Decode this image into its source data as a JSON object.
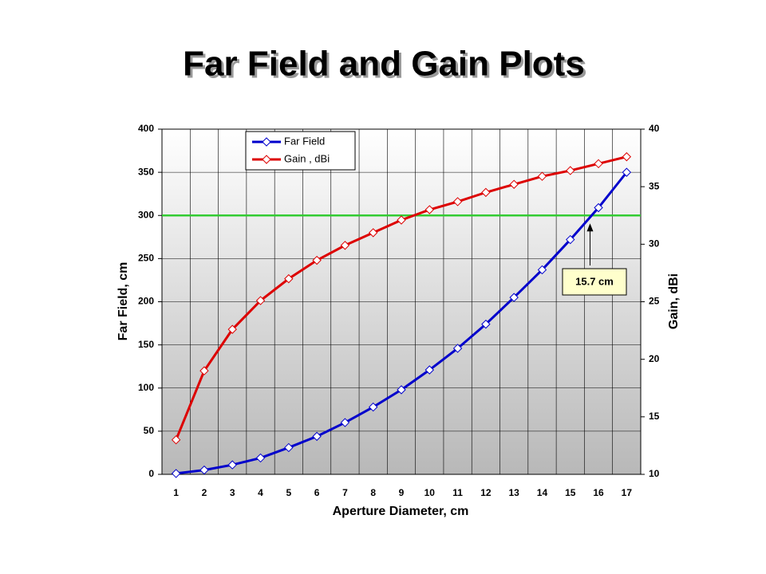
{
  "chart_data": {
    "type": "line",
    "title": "Far Field and Gain Plots",
    "x_label": "Aperture Diameter, cm",
    "y_label": "Far Field, cm",
    "y2_label": "Gain, dBi",
    "x": [
      1,
      2,
      3,
      4,
      5,
      6,
      7,
      8,
      9,
      10,
      11,
      12,
      13,
      14,
      15,
      16,
      17
    ],
    "xlim": [
      0.5,
      17.5
    ],
    "xticks": [
      1,
      2,
      3,
      4,
      5,
      6,
      7,
      8,
      9,
      10,
      11,
      12,
      13,
      14,
      15,
      16,
      17
    ],
    "ylim": [
      0,
      400
    ],
    "yticks": [
      0,
      50,
      100,
      150,
      200,
      250,
      300,
      350,
      400
    ],
    "y2lim": [
      10,
      40
    ],
    "y2ticks": [
      10,
      15,
      20,
      25,
      30,
      35,
      40
    ],
    "grid": true,
    "legend": "top-left",
    "series": [
      {
        "name": "Far Field",
        "color": "#0000cc",
        "values": [
          1,
          5,
          11,
          19,
          31,
          44,
          60,
          78,
          98,
          121,
          146,
          174,
          205,
          237,
          272,
          309,
          350
        ]
      },
      {
        "name": "Gain , dBi",
        "color": "#dd0000",
        "axis": "y2",
        "values": [
          13.0,
          19.0,
          22.6,
          25.1,
          27.0,
          28.6,
          29.9,
          31.0,
          32.1,
          33.0,
          33.7,
          34.5,
          35.2,
          35.9,
          36.4,
          37.0,
          37.6
        ]
      }
    ],
    "reference_line": {
      "value": 300,
      "color": "#33cc33"
    },
    "annotation": {
      "text": "15.7 cm",
      "x": 15.7
    }
  }
}
